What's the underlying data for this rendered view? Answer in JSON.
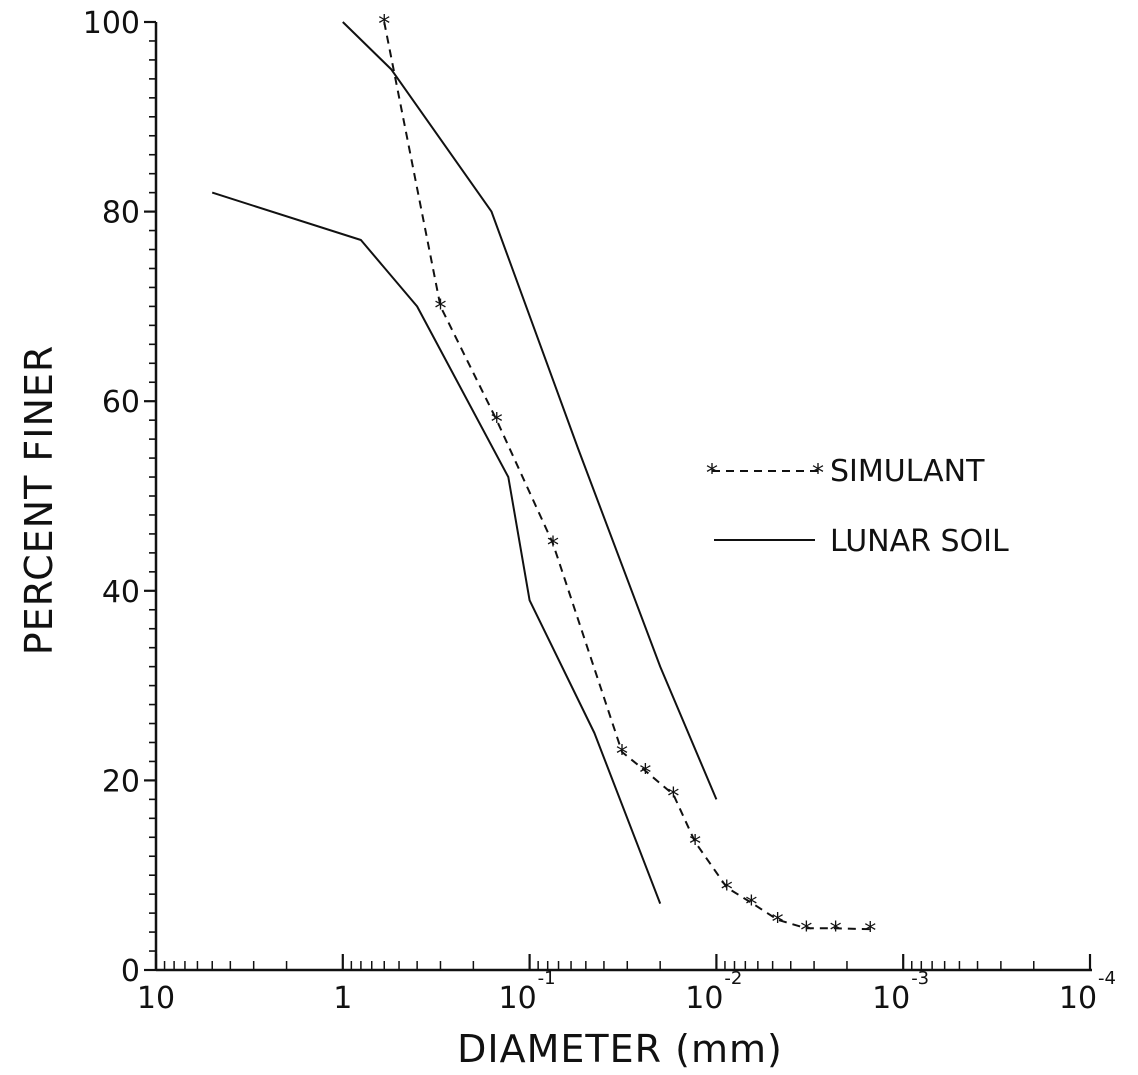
{
  "chart_data": {
    "type": "line",
    "title": "",
    "xlabel": "DIAMETER (mm)",
    "ylabel": "PERCENT FINER",
    "x_scale": "log",
    "x_direction": "decreasing",
    "xlim": [
      10,
      0.0001
    ],
    "ylim": [
      0,
      100
    ],
    "grid": false,
    "legend_position": "right",
    "x_tick_labels": [
      {
        "base": "10",
        "exp": ""
      },
      {
        "base": "1",
        "exp": ""
      },
      {
        "base": "10",
        "exp": "-1"
      },
      {
        "base": "10",
        "exp": "-2"
      },
      {
        "base": "10",
        "exp": "-3"
      },
      {
        "base": "10",
        "exp": "-4"
      }
    ],
    "y_ticks": [
      0,
      20,
      40,
      60,
      80,
      100
    ],
    "series": [
      {
        "name": "SIMULANT",
        "style": "dashed-with-markers",
        "points": [
          {
            "x": 0.6,
            "y": 100
          },
          {
            "x": 0.3,
            "y": 70
          },
          {
            "x": 0.15,
            "y": 58
          },
          {
            "x": 0.075,
            "y": 45
          },
          {
            "x": 0.032,
            "y": 23
          },
          {
            "x": 0.024,
            "y": 21
          },
          {
            "x": 0.017,
            "y": 18.5
          },
          {
            "x": 0.013,
            "y": 13.5
          },
          {
            "x": 0.0088,
            "y": 8.7
          },
          {
            "x": 0.0065,
            "y": 7.1
          },
          {
            "x": 0.0047,
            "y": 5.3
          },
          {
            "x": 0.0033,
            "y": 4.4
          },
          {
            "x": 0.0023,
            "y": 4.4
          },
          {
            "x": 0.0015,
            "y": 4.3
          }
        ]
      },
      {
        "name": "LUNAR SOIL",
        "style": "solid",
        "points": [
          {
            "x": 1.0,
            "y": 100
          },
          {
            "x": 0.55,
            "y": 95
          },
          {
            "x": 0.16,
            "y": 80
          },
          {
            "x": 0.055,
            "y": 55
          },
          {
            "x": 0.02,
            "y": 32
          },
          {
            "x": 0.01,
            "y": 18
          }
        ]
      },
      {
        "name": "",
        "style": "solid",
        "points": [
          {
            "x": 5.0,
            "y": 82
          },
          {
            "x": 0.8,
            "y": 77
          },
          {
            "x": 0.4,
            "y": 70
          },
          {
            "x": 0.13,
            "y": 52
          },
          {
            "x": 0.1,
            "y": 39
          },
          {
            "x": 0.045,
            "y": 25
          },
          {
            "x": 0.02,
            "y": 7
          }
        ]
      }
    ]
  }
}
